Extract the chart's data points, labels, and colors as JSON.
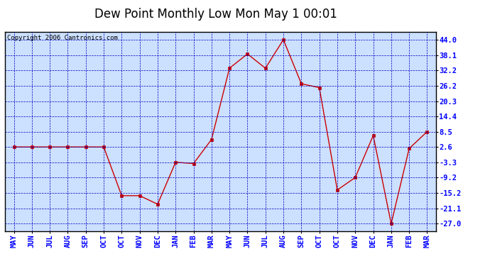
{
  "title": "Dew Point Monthly Low Mon May 1 00:01",
  "copyright": "Copyright 2006 Cantronics.com",
  "x_labels": [
    "MAY",
    "JUN",
    "JUL",
    "AUG",
    "SEP",
    "OCT",
    "OCT",
    "NOV",
    "DEC",
    "JAN",
    "FEB",
    "MAR",
    "MAY",
    "JUN",
    "JUL",
    "AUG",
    "SEP",
    "OCT",
    "OCT",
    "NOV",
    "DEC",
    "JAN",
    "FEB",
    "MAR"
  ],
  "y_values": [
    2.6,
    2.6,
    2.6,
    2.6,
    2.6,
    2.6,
    -16.2,
    -16.2,
    -19.5,
    -3.3,
    -3.8,
    5.5,
    33.0,
    38.5,
    33.0,
    44.0,
    27.0,
    25.5,
    -14.0,
    -9.2,
    7.0,
    -27.0,
    2.0,
    8.5
  ],
  "yticks": [
    44.0,
    38.1,
    32.2,
    26.2,
    20.3,
    14.4,
    8.5,
    2.6,
    -3.3,
    -9.2,
    -15.2,
    -21.1,
    -27.0
  ],
  "ylim": [
    -30.0,
    47.0
  ],
  "line_color": "#cc0000",
  "marker_color": "#cc0000",
  "bg_color": "#cce0ff",
  "grid_color": "#0000bb",
  "border_color": "#000000",
  "title_fontsize": 12,
  "tick_fontsize": 7.5,
  "copyright_fontsize": 6.5
}
